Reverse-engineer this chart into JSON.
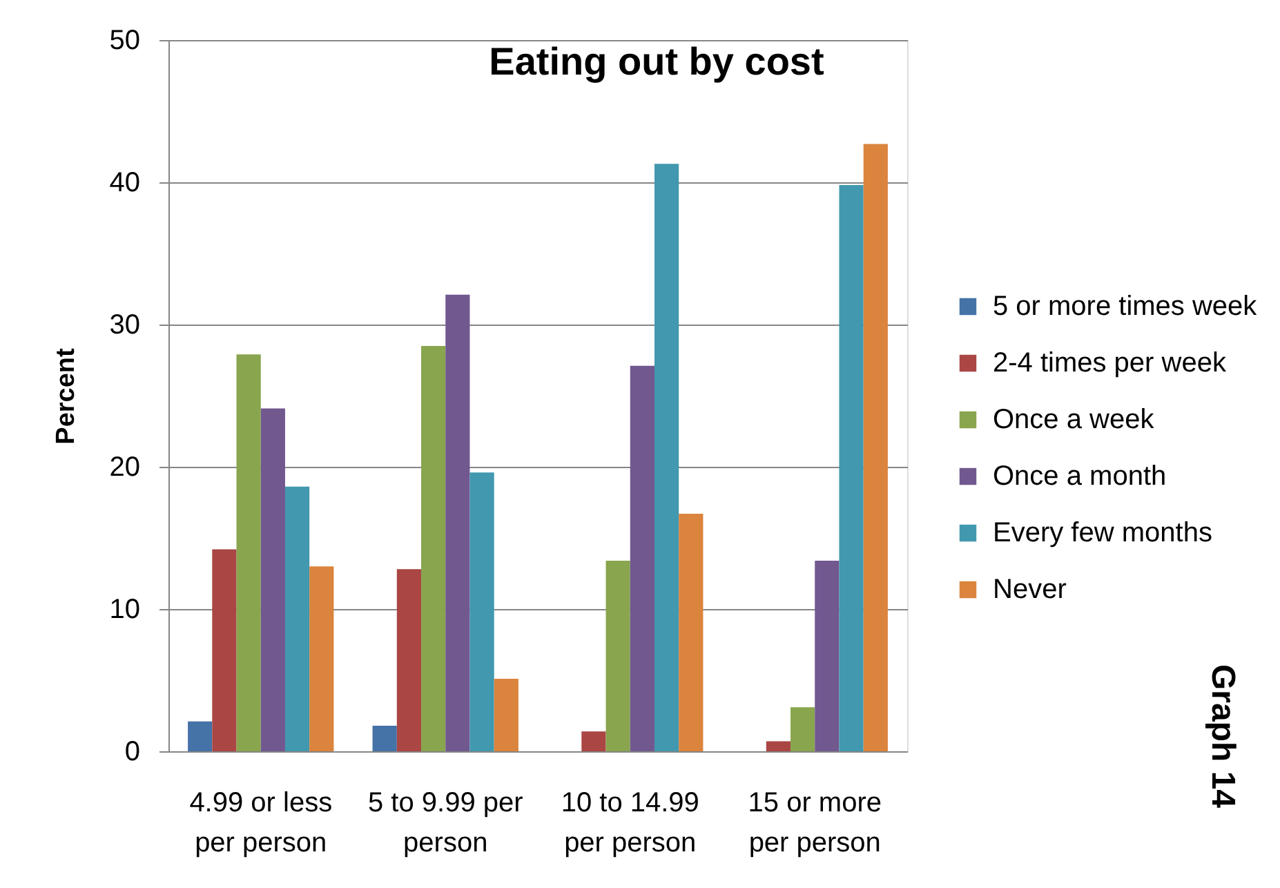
{
  "chart_data": {
    "type": "bar",
    "title": "Eating out by cost",
    "ylabel": "Percent",
    "categories": [
      "4.99 or less per person",
      "5 to 9.99 per person",
      "10 to 14.99 per person",
      "15 or more per person"
    ],
    "series": [
      {
        "name": "5 or more times week",
        "color": "#4572a7",
        "values": [
          2.1,
          1.8,
          null,
          null
        ]
      },
      {
        "name": "2-4 times per week",
        "color": "#aa4643",
        "values": [
          14.2,
          12.8,
          1.4,
          0.7
        ]
      },
      {
        "name": "Once a week",
        "color": "#89a54e",
        "values": [
          27.9,
          28.5,
          13.4,
          3.1
        ]
      },
      {
        "name": "Once a month",
        "color": "#71588f",
        "values": [
          24.1,
          32.1,
          27.1,
          13.4
        ]
      },
      {
        "name": "Every few months",
        "color": "#4198af",
        "values": [
          18.6,
          19.6,
          41.3,
          39.8
        ]
      },
      {
        "name": "Never",
        "color": "#db843d",
        "values": [
          13.0,
          5.1,
          16.7,
          42.7
        ]
      }
    ],
    "ylim": [
      0,
      50
    ],
    "yticks": [
      0,
      10,
      20,
      30,
      40,
      50
    ],
    "grid": "y",
    "legend": "right",
    "annotations": [
      "Graph 14"
    ]
  }
}
